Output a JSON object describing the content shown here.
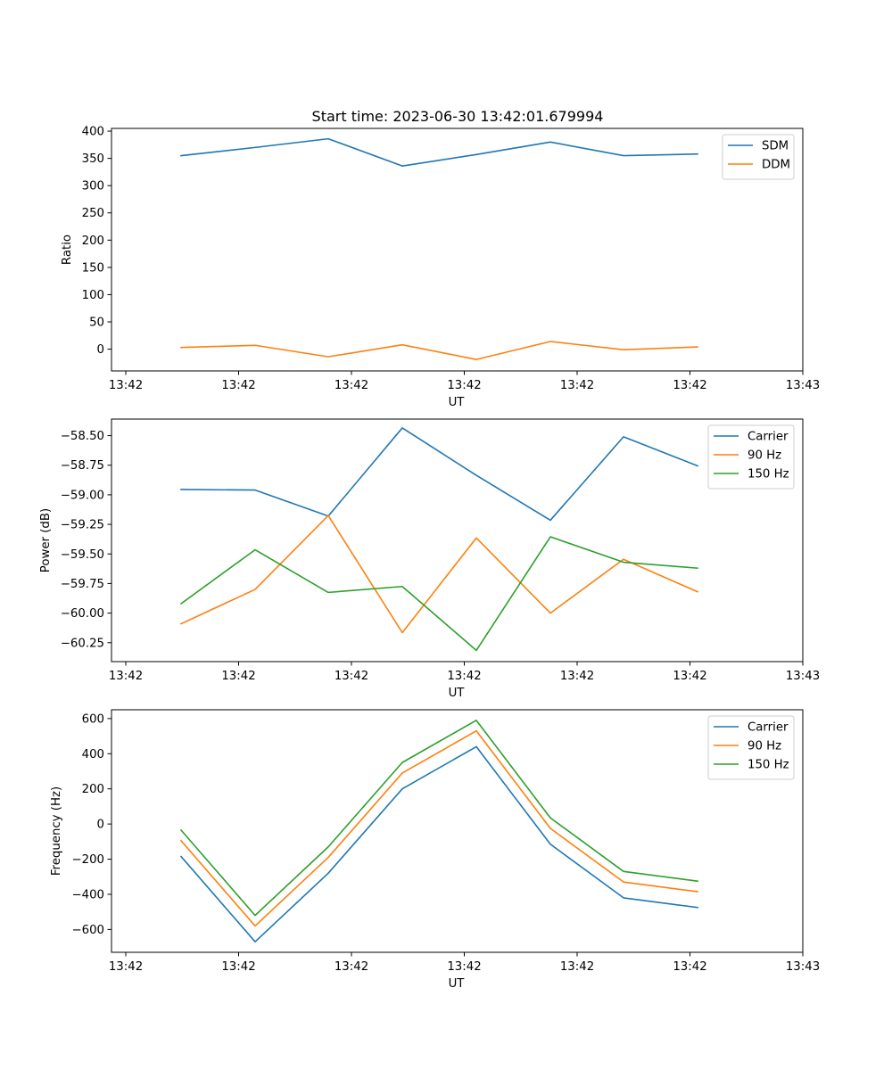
{
  "figure": {
    "title": "Start time: 2023-06-30 13:42:01.679994"
  },
  "chart_data": [
    {
      "type": "line",
      "title": "Start time: 2023-06-30 13:42:01.679994",
      "xlabel": "UT",
      "ylabel": "Ratio",
      "xtick_labels": [
        "13:42",
        "13:42",
        "13:42",
        "13:42",
        "13:42",
        "13:42",
        "13:42"
      ],
      "xtick_last": "13:43",
      "yticks": [
        0,
        50,
        100,
        150,
        200,
        250,
        300,
        350,
        400
      ],
      "ylim": [
        -40,
        405
      ],
      "grid": false,
      "legend_position": "top-right",
      "series": [
        {
          "name": "SDM",
          "color": "#1f77b4",
          "values": [
            355,
            370,
            386,
            336,
            357,
            380,
            355,
            358
          ]
        },
        {
          "name": "DDM",
          "color": "#ff7f0e",
          "values": [
            3,
            7,
            -14,
            8,
            -19,
            14,
            -1,
            4
          ]
        }
      ]
    },
    {
      "type": "line",
      "xlabel": "UT",
      "ylabel": "Power (dB)",
      "xtick_labels": [
        "13:42",
        "13:42",
        "13:42",
        "13:42",
        "13:42",
        "13:42",
        "13:42"
      ],
      "xtick_last": "13:43",
      "yticks": [
        -60.25,
        -60.0,
        -59.75,
        -59.5,
        -59.25,
        -59.0,
        -58.75,
        -58.5
      ],
      "ytick_labels": [
        "−60.25",
        "−60.00",
        "−59.75",
        "−59.50",
        "−59.25",
        "−59.00",
        "−58.75",
        "−58.50"
      ],
      "ylim": [
        -60.41,
        -58.36
      ],
      "grid": false,
      "legend_position": "top-right",
      "series": [
        {
          "name": "Carrier",
          "color": "#1f77b4",
          "values": [
            -58.955,
            -58.96,
            -59.18,
            -58.435,
            -58.835,
            -59.215,
            -58.51,
            -58.755
          ]
        },
        {
          "name": "90 Hz",
          "color": "#ff7f0e",
          "values": [
            -60.09,
            -59.8,
            -59.175,
            -60.165,
            -59.365,
            -60.0,
            -59.545,
            -59.82
          ]
        },
        {
          "name": "150 Hz",
          "color": "#2ca02c",
          "values": [
            -59.92,
            -59.465,
            -59.825,
            -59.775,
            -60.315,
            -59.355,
            -59.57,
            -59.62
          ]
        }
      ]
    },
    {
      "type": "line",
      "xlabel": "UT",
      "ylabel": "Frequency (Hz)",
      "xtick_labels": [
        "13:42",
        "13:42",
        "13:42",
        "13:42",
        "13:42",
        "13:42",
        "13:42"
      ],
      "xtick_last": "13:43",
      "yticks": [
        -600,
        -400,
        -200,
        0,
        200,
        400,
        600
      ],
      "ytick_labels": [
        "−600",
        "−400",
        "−200",
        "0",
        "200",
        "400",
        "600"
      ],
      "ylim": [
        -730,
        650
      ],
      "grid": false,
      "legend_position": "top-right",
      "series": [
        {
          "name": "Carrier",
          "color": "#1f77b4",
          "values": [
            -185,
            -670,
            -280,
            200,
            440,
            -115,
            -420,
            -475
          ]
        },
        {
          "name": "90 Hz",
          "color": "#ff7f0e",
          "values": [
            -95,
            -580,
            -190,
            290,
            530,
            -25,
            -330,
            -385
          ]
        },
        {
          "name": "150 Hz",
          "color": "#2ca02c",
          "values": [
            -35,
            -520,
            -130,
            350,
            590,
            35,
            -270,
            -325
          ]
        }
      ]
    }
  ]
}
